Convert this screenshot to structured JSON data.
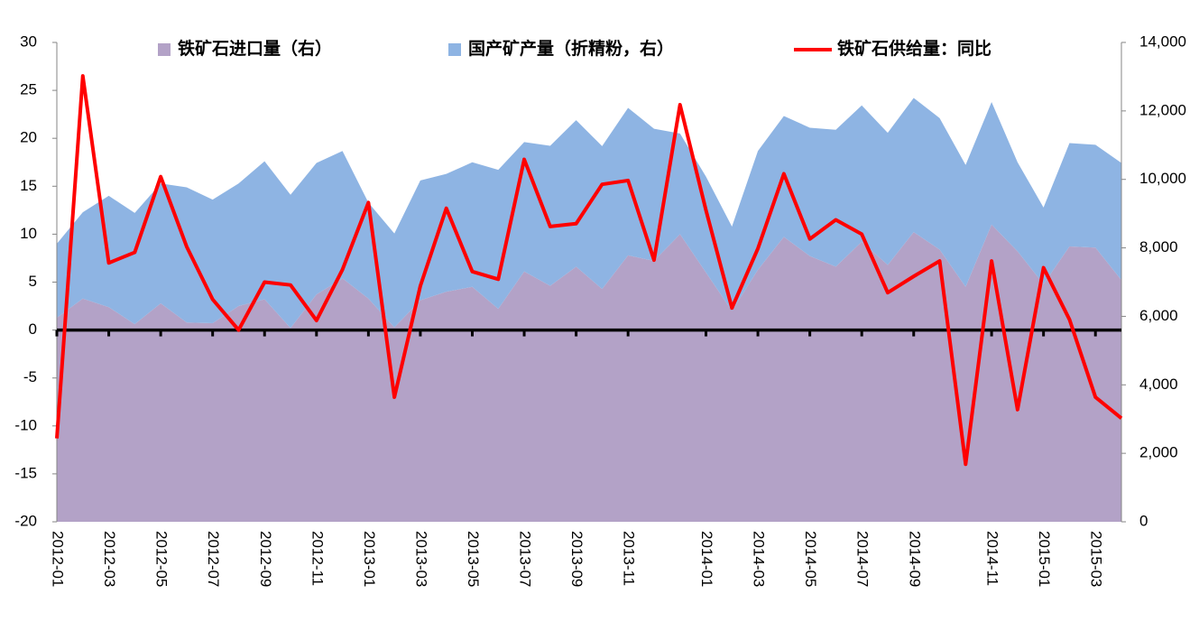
{
  "chart_data": {
    "type": "area-line",
    "categories": [
      "2012-01",
      null,
      "2012-03",
      null,
      "2012-05",
      null,
      "2012-07",
      null,
      "2012-09",
      null,
      "2012-11",
      null,
      "2013-01",
      null,
      "2013-03",
      null,
      "2013-05",
      null,
      "2013-07",
      null,
      "2013-09",
      null,
      "2013-11",
      null,
      null,
      "2014-01",
      null,
      "2014-03",
      null,
      "2014-05",
      null,
      "2014-07",
      null,
      "2014-09",
      null,
      null,
      "2014-11",
      null,
      "2015-01",
      null,
      "2015-03",
      null
    ],
    "series": [
      {
        "name": "铁矿石进口量（右）",
        "color": "#b3a2c7",
        "type": "area",
        "axis": "y2",
        "values": [
          5960,
          6520,
          6270,
          5770,
          6380,
          5820,
          5800,
          6300,
          6500,
          5660,
          6640,
          7110,
          6520,
          5680,
          6470,
          6720,
          6860,
          6220,
          7310,
          6890,
          7450,
          6800,
          7780,
          7620,
          8400,
          7280,
          6160,
          7360,
          8320,
          7760,
          7450,
          8180,
          7500,
          8460,
          7950,
          6860,
          8680,
          7900,
          6940,
          8040,
          8010,
          7060
        ]
      },
      {
        "name": "国产矿产量（折精粉，右）",
        "color": "#8eb4e3",
        "type": "area",
        "axis": "y2",
        "values": [
          2160,
          2520,
          3250,
          3250,
          3500,
          3950,
          3610,
          3580,
          4030,
          3890,
          3840,
          3720,
          2800,
          2740,
          3500,
          3440,
          3640,
          4060,
          3780,
          4090,
          4280,
          4170,
          4310,
          3860,
          2940,
          2800,
          2460,
          3470,
          3530,
          3750,
          4000,
          3980,
          3860,
          3920,
          3840,
          3560,
          3580,
          2600,
          2240,
          3020,
          3000,
          3420
        ]
      },
      {
        "name": "铁矿石供给量：同比",
        "color": "#ff0000",
        "type": "line",
        "values": [
          -11.3,
          26.5,
          7,
          8.1,
          16,
          8.7,
          3.2,
          0,
          5,
          4.7,
          1,
          6.3,
          13.3,
          -7,
          4.6,
          12.7,
          6.1,
          5.3,
          17.8,
          10.8,
          11.1,
          15.2,
          15.6,
          7.3,
          23.5,
          12.5,
          2.3,
          8.5,
          16.3,
          9.5,
          11.5,
          10,
          3.9,
          5.6,
          7.2,
          -14,
          7.2,
          -8.3,
          6.5,
          1.1,
          -7,
          -9.2
        ]
      }
    ],
    "ylim": [
      -20,
      30
    ],
    "yticks": [
      -20,
      -15,
      -10,
      -5,
      0,
      5,
      10,
      15,
      20,
      25,
      30
    ],
    "negative_tick_color": "#ff0000",
    "y2lim": [
      0,
      14000
    ],
    "y2ticks": [
      0,
      {
        "value": 2000,
        "label": "2,000"
      },
      {
        "value": 4000,
        "label": "4,000"
      },
      {
        "value": 6000,
        "label": "6,000"
      },
      {
        "value": 8000,
        "label": "8,000"
      },
      {
        "value": 10000,
        "label": "10,000"
      },
      {
        "value": 12000,
        "label": "12,000"
      },
      {
        "value": 14000,
        "label": "14,000"
      }
    ],
    "legend": "top"
  }
}
